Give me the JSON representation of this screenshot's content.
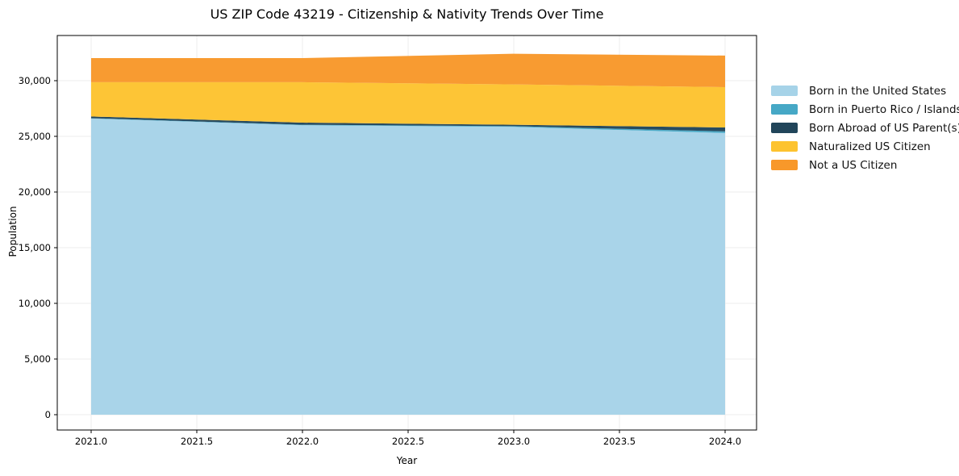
{
  "title": "US ZIP Code 43219 - Citizenship & Nativity Trends Over Time",
  "axes": {
    "xlabel": "Year",
    "ylabel": "Population",
    "x_tick_labels": [
      "2021.0",
      "2021.5",
      "2022.0",
      "2022.5",
      "2023.0",
      "2023.5",
      "2024.0"
    ],
    "y_tick_labels": [
      "0",
      "5,000",
      "10,000",
      "15,000",
      "20,000",
      "25,000",
      "30,000"
    ]
  },
  "chart_data": {
    "type": "area",
    "stacked": true,
    "title": "US ZIP Code 43219 - Citizenship & Nativity Trends Over Time",
    "xlabel": "Year",
    "ylabel": "Population",
    "x": [
      2021,
      2022,
      2023,
      2024
    ],
    "x_ticks": [
      2021.0,
      2021.5,
      2022.0,
      2022.5,
      2023.0,
      2023.5,
      2024.0
    ],
    "y_ticks": [
      0,
      5000,
      10000,
      15000,
      20000,
      25000,
      30000
    ],
    "ylim": [
      -1380,
      34060
    ],
    "xlim": [
      2020.84,
      2024.15
    ],
    "grid": true,
    "legend_position": "right",
    "series": [
      {
        "name": "Born in the United States",
        "color": "#a6d3e8",
        "values": [
          26600,
          26000,
          25850,
          25300
        ]
      },
      {
        "name": "Born in Puerto Rico / Islands",
        "color": "#46a8c6",
        "values": [
          30,
          40,
          60,
          140
        ]
      },
      {
        "name": "Born Abroad of US Parent(s)",
        "color": "#21455a",
        "values": [
          150,
          190,
          130,
          360
        ]
      },
      {
        "name": "Naturalized US Citizen",
        "color": "#fdc32f",
        "values": [
          3080,
          3630,
          3630,
          3620
        ]
      },
      {
        "name": "Not a US Citizen",
        "color": "#f8982a",
        "values": [
          2170,
          2170,
          2750,
          2830
        ]
      }
    ],
    "totals": [
      32030,
      32030,
      32420,
      32250
    ]
  },
  "style_colors": {
    "grid": "#ececec",
    "spine": "#000000",
    "text": "#000000"
  }
}
